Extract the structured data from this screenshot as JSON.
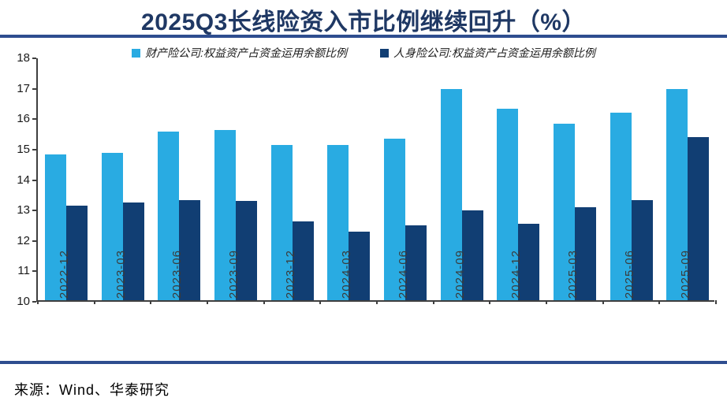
{
  "title": "2025Q3长线险资入市比例继续回升（%）",
  "source": "来源：Wind、华泰研究",
  "colors": {
    "title_navy": "#1f3864",
    "rule_blue": "#2e4d8f",
    "series_property": "#29abe2",
    "series_life": "#113e73",
    "axis": "#3f3f3f"
  },
  "chart_data": {
    "type": "bar",
    "title": "2025Q3长线险资入市比例继续回升（%）",
    "categories": [
      "2022-12",
      "2023-03",
      "2023-06",
      "2023-09",
      "2023-12",
      "2024-03",
      "2024-06",
      "2024-09",
      "2024-12",
      "2025-03",
      "2025-06",
      "2025-09"
    ],
    "series": [
      {
        "name": "财产险公司:权益资产占资金运用余额比例",
        "color": "#29abe2",
        "values": [
          14.8,
          14.85,
          15.55,
          15.6,
          15.1,
          15.1,
          15.3,
          16.95,
          16.3,
          15.8,
          16.15,
          16.95
        ]
      },
      {
        "name": "人身险公司:权益资产占资金运用余额比例",
        "color": "#113e73",
        "values": [
          13.1,
          13.2,
          13.3,
          13.25,
          12.6,
          12.25,
          12.45,
          12.95,
          12.5,
          13.05,
          13.3,
          15.35
        ]
      }
    ],
    "xlabel": "",
    "ylabel": "",
    "ylim": [
      10,
      18
    ],
    "ytick_step": 1,
    "legend_position": "top",
    "grid": "off"
  }
}
